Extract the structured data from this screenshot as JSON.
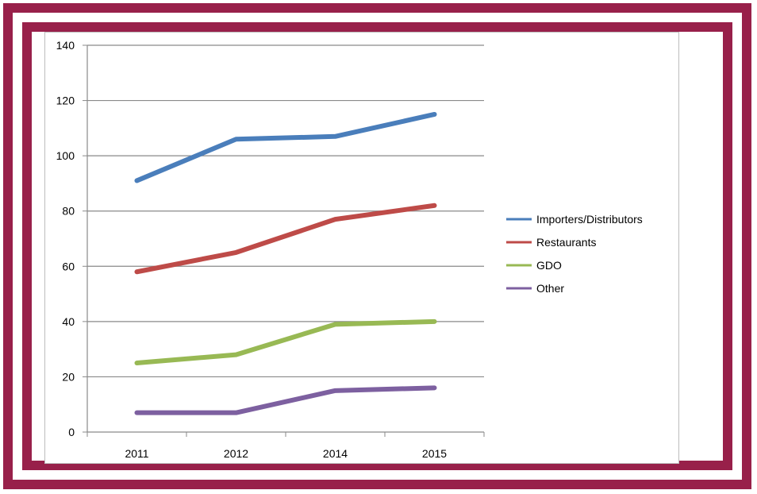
{
  "chart_data": {
    "type": "line",
    "categories": [
      "2011",
      "2012",
      "2014",
      "2015"
    ],
    "series": [
      {
        "name": "Importers/Distributors",
        "color": "#4a7ebb",
        "values": [
          91,
          106,
          107,
          115
        ]
      },
      {
        "name": "Restaurants",
        "color": "#be4b48",
        "values": [
          58,
          65,
          77,
          82
        ]
      },
      {
        "name": "GDO",
        "color": "#98b954",
        "values": [
          25,
          28,
          39,
          40
        ]
      },
      {
        "name": "Other",
        "color": "#7d60a0",
        "values": [
          7,
          7,
          15,
          16
        ]
      }
    ],
    "y_ticks": [
      0,
      20,
      40,
      60,
      80,
      100,
      120,
      140
    ],
    "ylim": [
      0,
      140
    ],
    "grid": true,
    "legend_position": "right",
    "frame_color": "#98204a"
  }
}
